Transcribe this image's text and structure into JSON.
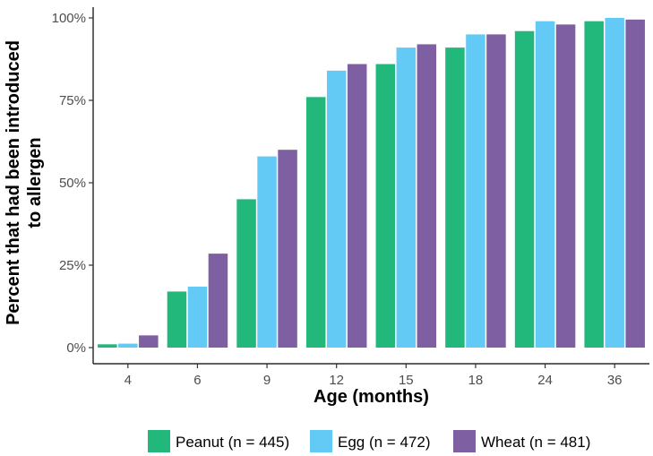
{
  "chart_data": {
    "type": "bar",
    "title": "",
    "xlabel": "Age (months)",
    "ylabel_lines": [
      "Percent that had been introduced",
      "to allergen"
    ],
    "categories": [
      "4",
      "6",
      "9",
      "12",
      "15",
      "18",
      "24",
      "36"
    ],
    "ylim": [
      0,
      100
    ],
    "yticks": [
      0,
      25,
      50,
      75,
      100
    ],
    "ytick_labels": [
      "0%",
      "25%",
      "50%",
      "75%",
      "100%"
    ],
    "grid": false,
    "legend_position": "bottom",
    "series": [
      {
        "name": "Peanut (n = 445)",
        "color": "#22b77b",
        "values": [
          1,
          17,
          45,
          76,
          86,
          91,
          96,
          99
        ]
      },
      {
        "name": "Egg (n = 472)",
        "color": "#63c9f5",
        "values": [
          1.2,
          18.5,
          58,
          84,
          91,
          95,
          99,
          100
        ]
      },
      {
        "name": "Wheat (n = 481)",
        "color": "#7e5fa2",
        "values": [
          3.7,
          28.5,
          60,
          86,
          92,
          95,
          98,
          99.5
        ]
      }
    ]
  }
}
